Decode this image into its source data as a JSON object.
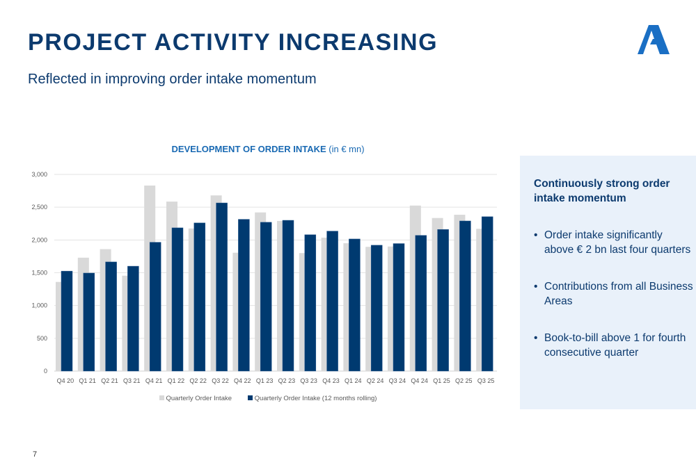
{
  "header": {
    "title": "PROJECT ACTIVITY INCREASING",
    "subtitle": "Reflected in improving order intake momentum",
    "logo": "company-logo-a-icon"
  },
  "colors": {
    "title": "#0c3a6e",
    "accent": "#1a6ab3",
    "series_quarterly": "#d9d9d9",
    "series_rolling": "#003a70",
    "panel_bg": "#e9f1fa",
    "logo": "#1a6fc4"
  },
  "chart_data": {
    "type": "bar",
    "title_bold": "DEVELOPMENT OF ORDER INTAKE",
    "title_suffix": " (in € mn)",
    "xlabel": "",
    "ylabel": "",
    "ylim": [
      0,
      3000
    ],
    "yticks": [
      0,
      500,
      1000,
      1500,
      2000,
      2500,
      3000
    ],
    "ytick_labels": [
      "0",
      "500",
      "1,000",
      "1,500",
      "2,000",
      "2,500",
      "3,000"
    ],
    "grid": true,
    "legend_position": "bottom",
    "categories": [
      "Q4 20",
      "Q1 21",
      "Q2 21",
      "Q3 21",
      "Q4 21",
      "Q1 22",
      "Q2 22",
      "Q3 22",
      "Q4 22",
      "Q1 23",
      "Q2 23",
      "Q3 23",
      "Q4 23",
      "Q1 24",
      "Q2 24",
      "Q3 24",
      "Q4 24",
      "Q1 25",
      "Q2 25",
      "Q3 25"
    ],
    "series": [
      {
        "name": "Quarterly Order Intake",
        "color": "#d9d9d9",
        "values": [
          1360,
          1730,
          1860,
          1455,
          2830,
          2585,
          2175,
          2680,
          1805,
          2420,
          2290,
          1800,
          2035,
          1950,
          1895,
          1900,
          2525,
          2335,
          2385,
          2170
        ]
      },
      {
        "name": "Quarterly Order Intake (12 months rolling)",
        "color": "#003a70",
        "values": [
          1525,
          1495,
          1665,
          1600,
          1965,
          2185,
          2260,
          2565,
          2315,
          2270,
          2300,
          2080,
          2135,
          2015,
          1920,
          1945,
          2070,
          2160,
          2290,
          2355
        ]
      }
    ]
  },
  "side_panel": {
    "heading": "Continuously strong order intake momentum",
    "bullet_char": "•",
    "bullets": [
      "Order intake significantly above € 2 bn last four quarters",
      "Contributions from all Business Areas",
      "Book-to-bill above 1 for fourth consecutive quarter"
    ]
  },
  "footer": {
    "page_number": "7"
  }
}
